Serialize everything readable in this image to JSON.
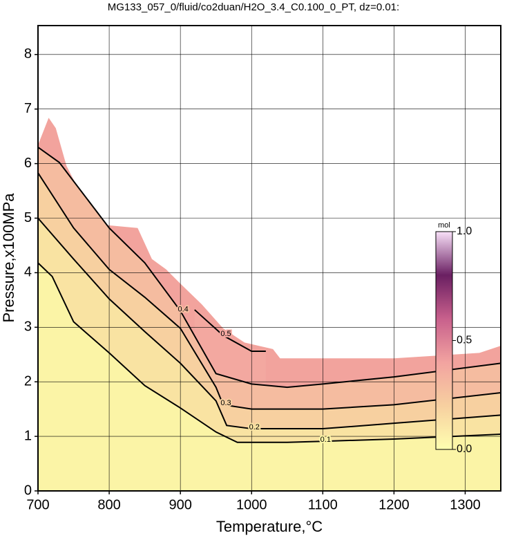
{
  "chart_data": {
    "type": "contour",
    "title": "MG133_057_0/fluid/co2duan/H2O_3.4_C0.100_0_PT, dz=0.01:",
    "x_label": "Temperature,°C",
    "y_label": "Pressure,x100MPa",
    "xlim": [
      700,
      1350
    ],
    "ylim": [
      0,
      8.53
    ],
    "xticks": [
      700,
      800,
      900,
      1000,
      1100,
      1200,
      1300
    ],
    "yticks": [
      0,
      1,
      2,
      3,
      4,
      5,
      6,
      7,
      8
    ],
    "grid": true,
    "region": {
      "color": "#f2a39d",
      "x": [
        700,
        715,
        725,
        740,
        760,
        780,
        790,
        840,
        860,
        880,
        900,
        930,
        960,
        990,
        1030,
        1040,
        1200,
        1320,
        1350
      ],
      "values": [
        6.34,
        6.84,
        6.65,
        5.96,
        5.45,
        5.07,
        4.88,
        4.82,
        4.25,
        4.06,
        3.8,
        3.42,
        2.98,
        2.72,
        2.6,
        2.43,
        2.43,
        2.53,
        2.66
      ]
    },
    "series": [
      {
        "level": 0.5,
        "fill": "#f3a8a0",
        "x": [
          920,
          960,
          1000,
          1020
        ],
        "values": [
          3.32,
          2.85,
          2.56,
          2.56
        ]
      },
      {
        "level": 0.4,
        "fill": "#f5bca0",
        "x": [
          700,
          730,
          800,
          850,
          900,
          950,
          1000,
          1050,
          1100,
          1200,
          1350
        ],
        "values": [
          6.3,
          6.02,
          4.82,
          4.18,
          3.3,
          2.15,
          1.96,
          1.9,
          1.96,
          2.09,
          2.34
        ]
      },
      {
        "level": 0.3,
        "fill": "#f7d0a0",
        "x": [
          700,
          750,
          800,
          850,
          900,
          950,
          960,
          1000,
          1100,
          1200,
          1350
        ],
        "values": [
          5.83,
          4.82,
          4.06,
          3.55,
          2.98,
          1.9,
          1.58,
          1.5,
          1.5,
          1.58,
          1.8
        ]
      },
      {
        "level": 0.2,
        "fill": "#f9e3a2",
        "x": [
          700,
          750,
          800,
          850,
          900,
          950,
          965,
          1000,
          1100,
          1200,
          1350
        ],
        "values": [
          5.0,
          4.25,
          3.52,
          2.92,
          2.34,
          1.65,
          1.2,
          1.14,
          1.14,
          1.24,
          1.39
        ]
      },
      {
        "level": 0.1,
        "fill": "#fbf4a6",
        "x": [
          700,
          720,
          750,
          800,
          850,
          900,
          950,
          980,
          1050,
          1100,
          1200,
          1350
        ],
        "values": [
          4.18,
          3.93,
          3.1,
          2.53,
          1.93,
          1.52,
          1.08,
          0.89,
          0.89,
          0.91,
          0.95,
          1.04
        ]
      }
    ],
    "colorbar": {
      "label": "mol",
      "lim": [
        0,
        1
      ],
      "ticks": [
        {
          "value": 0,
          "label": "0.0"
        },
        0.5,
        {
          "value": 1,
          "label": "1.0"
        }
      ],
      "colors": [
        "#ffffb0",
        "#f7d0a0",
        "#f2a3a0",
        "#c8608c",
        "#6a1f62",
        "#f8e0f8"
      ]
    }
  }
}
